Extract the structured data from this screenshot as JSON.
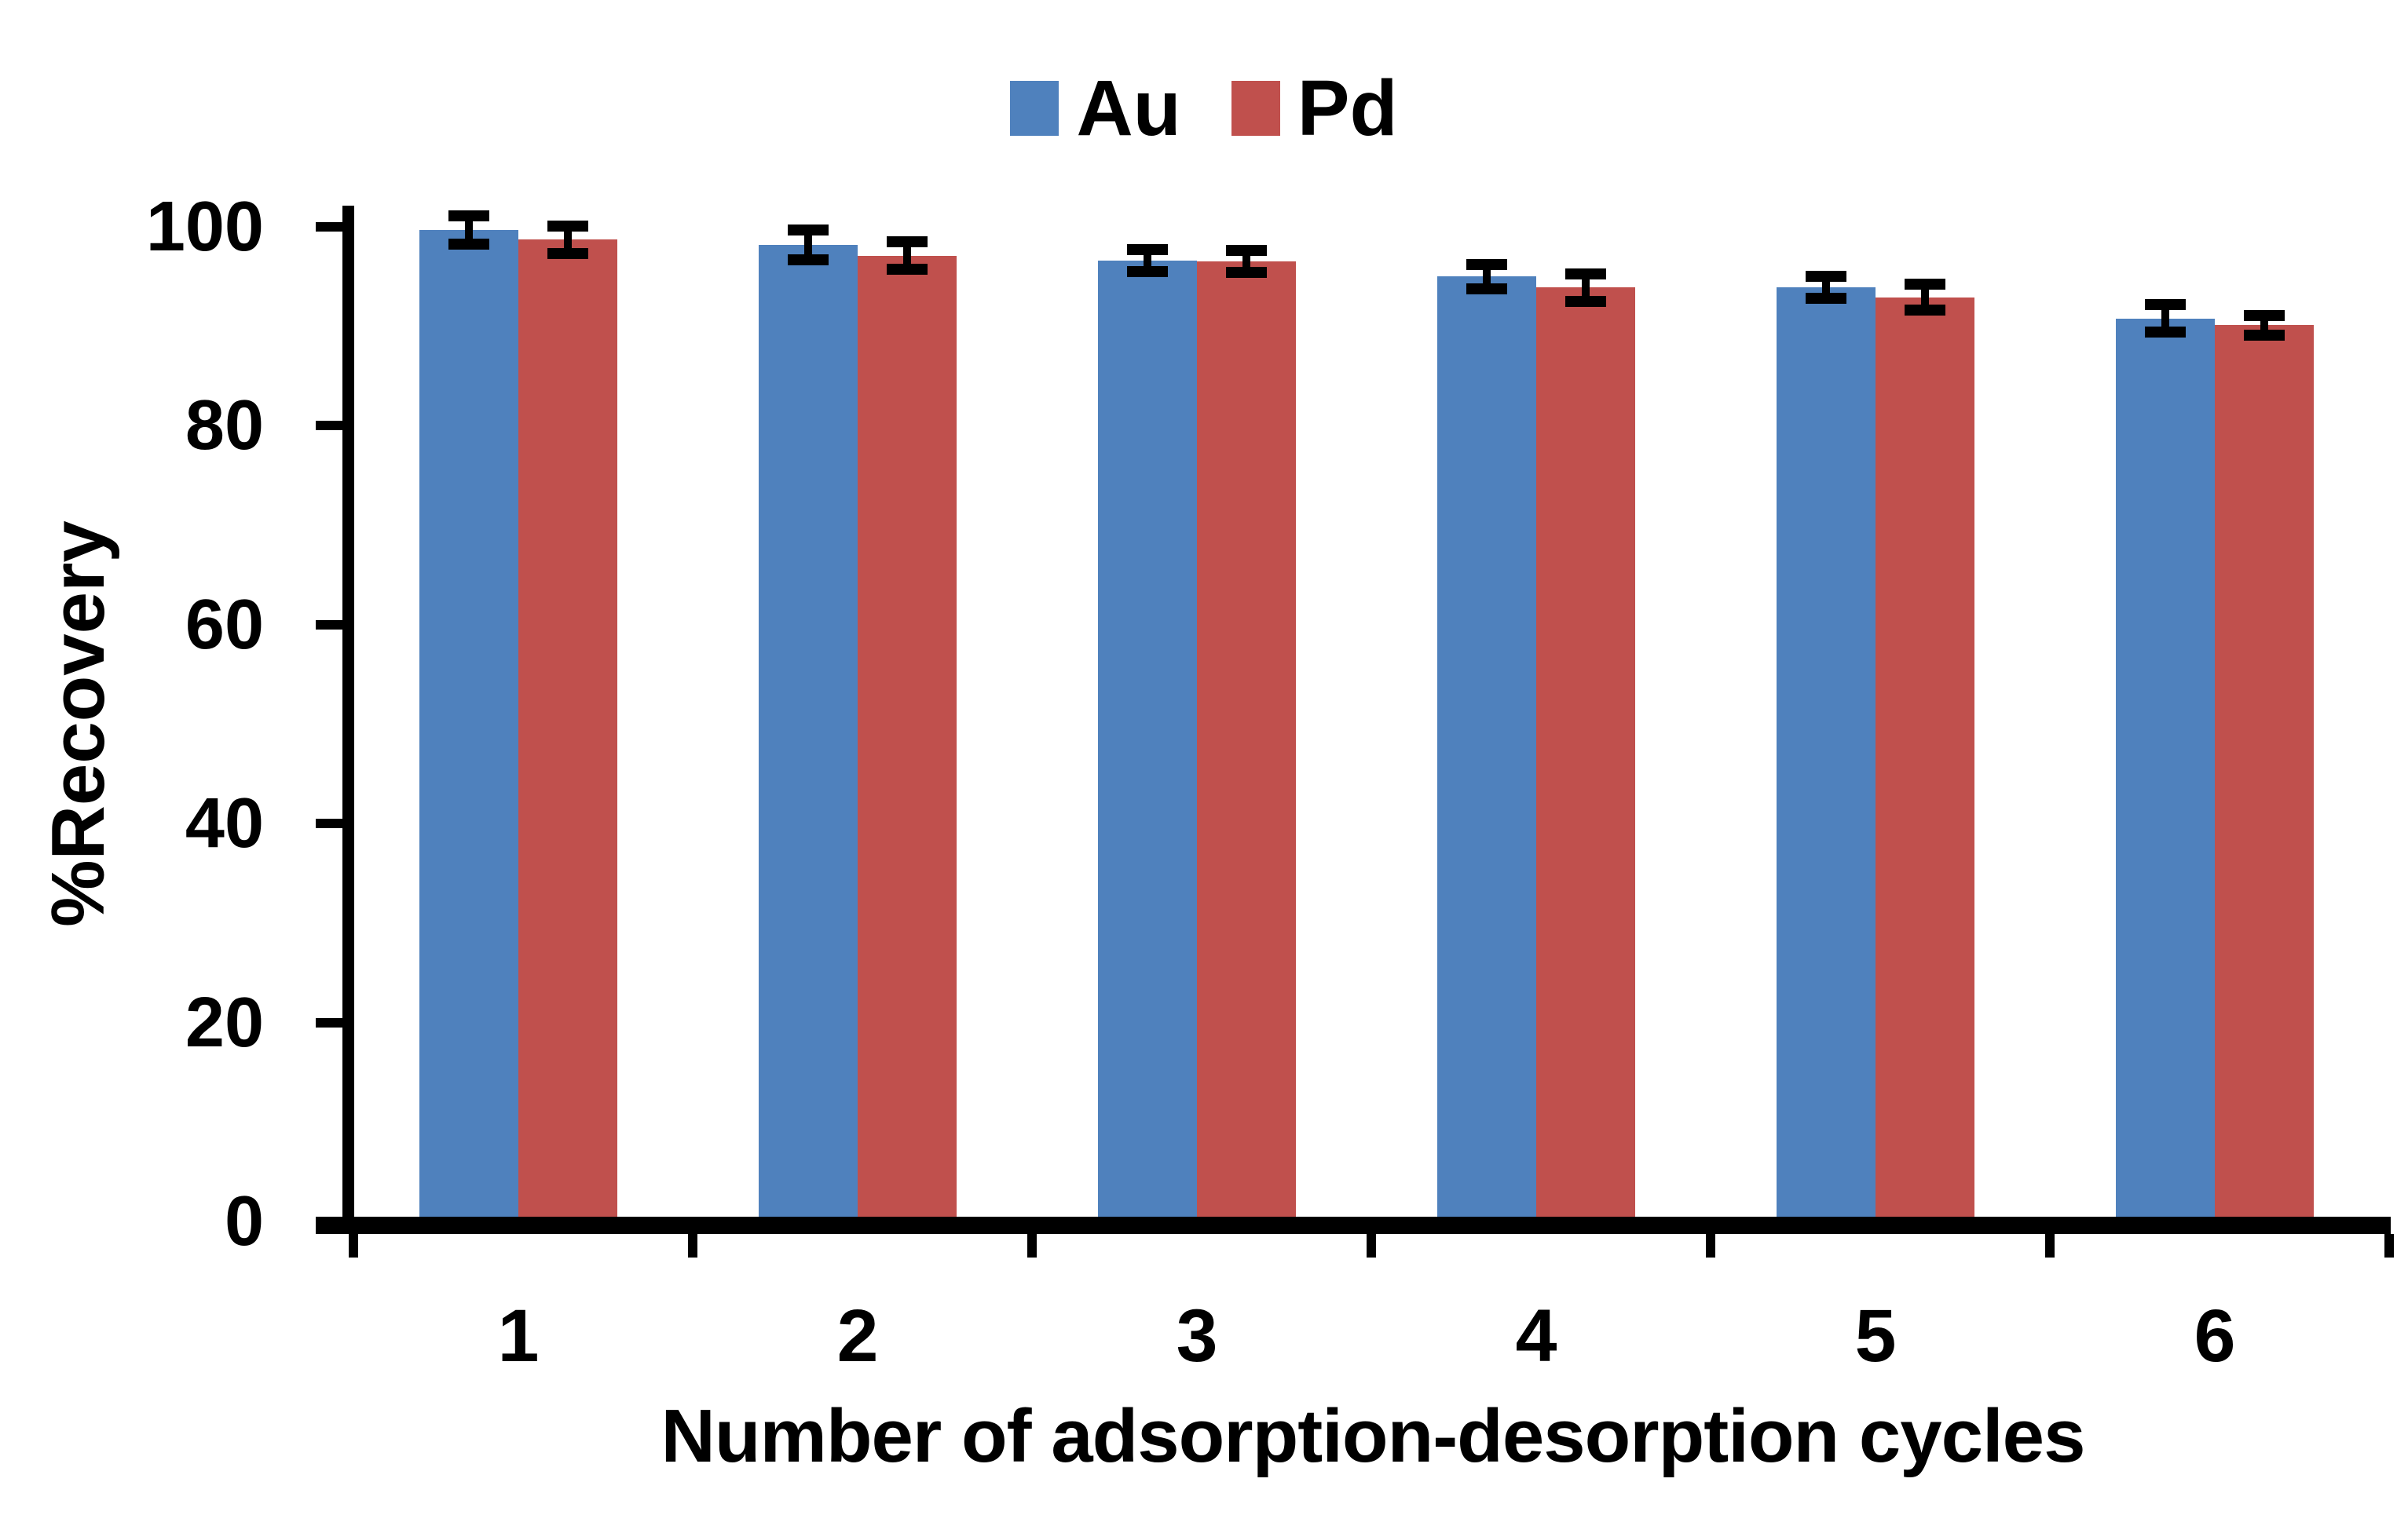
{
  "figure": {
    "legend": {
      "items": [
        {
          "label": "Au",
          "color": "#4F81BD"
        },
        {
          "label": "Pd",
          "color": "#C0504D"
        }
      ]
    }
  },
  "chart_data": {
    "type": "bar",
    "title": "",
    "categories": [
      "1",
      "2",
      "3",
      "4",
      "5",
      "6"
    ],
    "series": [
      {
        "name": "Au",
        "color": "#4F81BD",
        "values": [
          99.7,
          98.2,
          96.6,
          95.0,
          93.9,
          90.8
        ],
        "errors": [
          1.4,
          1.5,
          1.1,
          1.2,
          1.1,
          1.4
        ]
      },
      {
        "name": "Pd",
        "color": "#C0504D",
        "values": [
          98.7,
          97.1,
          96.5,
          93.9,
          92.9,
          90.1
        ],
        "errors": [
          1.4,
          1.4,
          1.1,
          1.4,
          1.3,
          1.0
        ]
      }
    ],
    "xlabel": "Number of adsorption-desorption cycles",
    "ylabel": "%Recovery",
    "ylim": [
      0,
      100
    ],
    "yticks": [
      0,
      20,
      40,
      60,
      80,
      100
    ],
    "grid": false,
    "legend_position": "top-center",
    "error_bars": true,
    "error_bar_color": "#000000",
    "axis_color": "#000000"
  }
}
